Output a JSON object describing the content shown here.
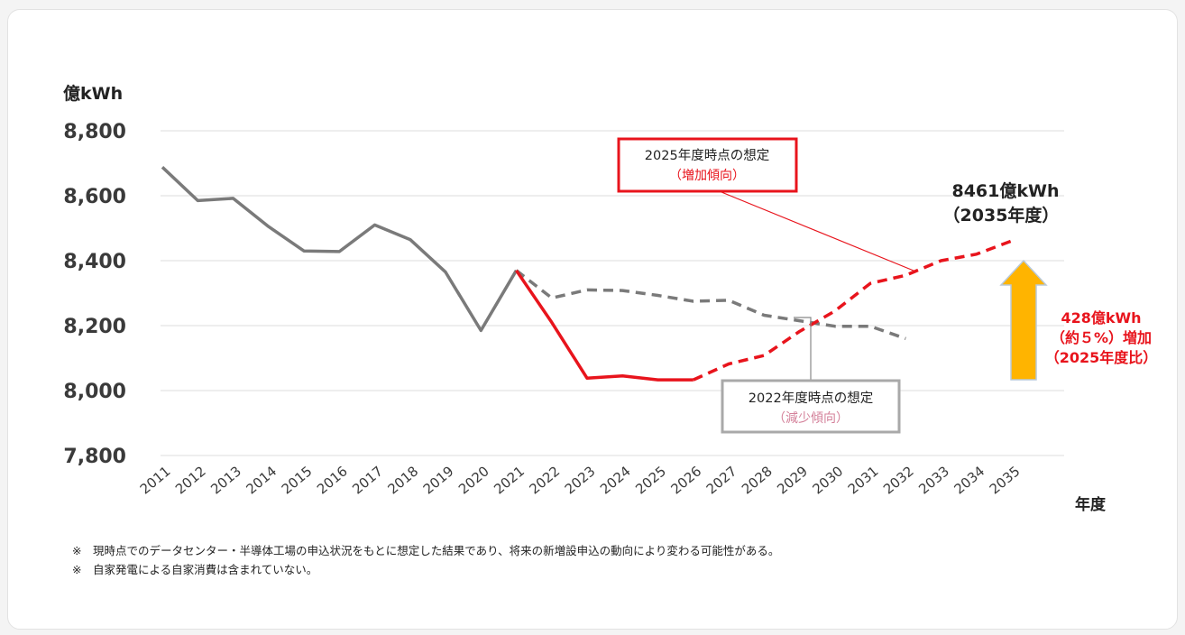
{
  "chart_data": {
    "type": "line",
    "ylabel": "億kWh",
    "xlabel": "年度",
    "ylim": [
      7800,
      8800
    ],
    "yticks": [
      "8,800",
      "8,600",
      "8,400",
      "8,200",
      "8,000",
      "7,800"
    ],
    "ytick_values": [
      8800,
      8600,
      8400,
      8200,
      8000,
      7800
    ],
    "categories": [
      "2011",
      "2012",
      "2013",
      "2014",
      "2015",
      "2016",
      "2017",
      "2018",
      "2019",
      "2020",
      "2021",
      "2022",
      "2023",
      "2024",
      "2025",
      "2026",
      "2027",
      "2028",
      "2029",
      "2030",
      "2031",
      "2032",
      "2033",
      "2034",
      "2035"
    ],
    "grid": true,
    "series": [
      {
        "key": "actual",
        "style": "solid",
        "color": "#7a7a7a",
        "x": [
          "2011",
          "2012",
          "2013",
          "2014",
          "2015",
          "2016",
          "2017",
          "2018",
          "2019",
          "2020",
          "2021"
        ],
        "values": [
          8688,
          8585,
          8592,
          8505,
          8430,
          8428,
          8510,
          8465,
          8365,
          8185,
          8370
        ]
      },
      {
        "key": "forecast-2022",
        "style": "dashed",
        "color": "#7a7a7a",
        "x": [
          "2021",
          "2022",
          "2023",
          "2024",
          "2025",
          "2026",
          "2027",
          "2028",
          "2029",
          "2030",
          "2031",
          "2032"
        ],
        "values": [
          8370,
          8285,
          8310,
          8308,
          8293,
          8275,
          8278,
          8232,
          8215,
          8198,
          8198,
          8160
        ]
      },
      {
        "key": "forecast-2025-actual",
        "style": "solid",
        "color": "#e8141c",
        "x": [
          "2021",
          "2022",
          "2023",
          "2024",
          "2025",
          "2026"
        ],
        "values": [
          8370,
          8210,
          8038,
          8045,
          8033,
          8033
        ]
      },
      {
        "key": "forecast-2025",
        "style": "dashed",
        "color": "#e8141c",
        "x": [
          "2026",
          "2027",
          "2028",
          "2029",
          "2030",
          "2031",
          "2032",
          "2033",
          "2034",
          "2035"
        ],
        "values": [
          8033,
          8082,
          8108,
          8182,
          8245,
          8330,
          8355,
          8400,
          8420,
          8461
        ]
      }
    ],
    "annotations": {
      "box_2025_title": "2025年度時点の想定",
      "box_2025_sub": "（増加傾向）",
      "box_2022_title": "2022年度時点の想定",
      "box_2022_sub": "（減少傾向）",
      "end_value_line1": "8461億kWh",
      "end_value_line2": "（2035年度）",
      "increase_line1": "428億kWh",
      "increase_line2": "（約５%）増加",
      "increase_line3": "（2025年度比）"
    },
    "colors": {
      "gray": "#7a7a7a",
      "red": "#e8141c",
      "arrow": "#ffb400",
      "arrow_border": "#b9c9d9",
      "sub_pink": "#d4819a"
    }
  },
  "notes": [
    "※　現時点でのデータセンター・半導体工場の申込状況をもとに想定した結果であり、将来の新増設申込の動向により変わる可能性がある。",
    "※　自家発電による自家消費は含まれていない。"
  ]
}
